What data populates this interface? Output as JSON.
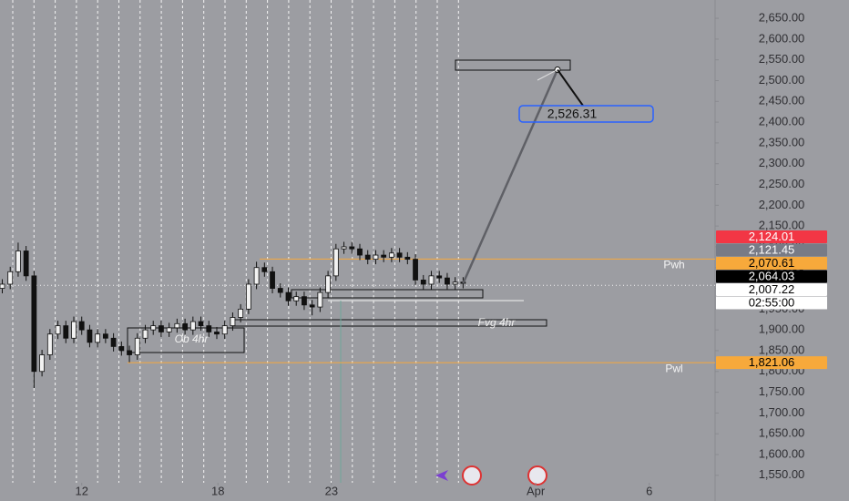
{
  "chart_data": {
    "type": "candlestick",
    "x": [
      8.5,
      8.85,
      9.2,
      9.55,
      9.9,
      10.25,
      10.6,
      10.95,
      11.3,
      11.65,
      12,
      12.35,
      12.7,
      13.05,
      13.4,
      13.75,
      14.1,
      14.45,
      14.8,
      15.15,
      15.5,
      15.85,
      16.2,
      16.55,
      16.9,
      17.25,
      17.6,
      17.95,
      18.3,
      18.65,
      19,
      19.35,
      19.7,
      20.05,
      20.4,
      20.75,
      21.1,
      21.45,
      21.8,
      22.15,
      22.5,
      22.85,
      23.2,
      23.55,
      23.9,
      24.25,
      24.6,
      24.95,
      25.3,
      25.65,
      26,
      26.35,
      26.7,
      27.05,
      27.4,
      27.75,
      28.1,
      28.45,
      28.8
    ],
    "open": [
      2000,
      2010,
      2040,
      2090,
      2030,
      1800,
      1840,
      1890,
      1910,
      1880,
      1920,
      1900,
      1870,
      1890,
      1880,
      1860,
      1850,
      1840,
      1880,
      1900,
      1910,
      1895,
      1905,
      1915,
      1900,
      1920,
      1910,
      1895,
      1890,
      1910,
      1930,
      1950,
      2010,
      2050,
      2040,
      2000,
      1990,
      1970,
      1980,
      1960,
      1955,
      1990,
      2030,
      2095,
      2100,
      2095,
      2080,
      2070,
      2080,
      2075,
      2085,
      2075,
      2070,
      2020,
      2010,
      2030,
      2025,
      2010,
      2015
    ],
    "high": [
      2022,
      2052,
      2110,
      2102,
      2042,
      1852,
      1902,
      1922,
      1922,
      1932,
      1932,
      1912,
      1902,
      1902,
      1892,
      1872,
      1862,
      1892,
      1912,
      1922,
      1922,
      1917,
      1927,
      1927,
      1932,
      1932,
      1922,
      1907,
      1922,
      1942,
      1962,
      2022,
      2064,
      2062,
      2052,
      2012,
      2002,
      1992,
      1992,
      1972,
      2002,
      2042,
      2107,
      2112,
      2112,
      2107,
      2092,
      2092,
      2092,
      2097,
      2097,
      2087,
      2082,
      2032,
      2042,
      2042,
      2037,
      2027,
      2027
    ],
    "low": [
      1988,
      1998,
      2028,
      2018,
      1760,
      1788,
      1828,
      1878,
      1868,
      1868,
      1888,
      1858,
      1858,
      1868,
      1848,
      1838,
      1822,
      1828,
      1868,
      1888,
      1883,
      1883,
      1893,
      1888,
      1888,
      1898,
      1883,
      1878,
      1878,
      1898,
      1918,
      1938,
      1998,
      2028,
      1988,
      1978,
      1958,
      1958,
      1948,
      1935,
      1943,
      1978,
      2018,
      2083,
      2083,
      2068,
      2058,
      2058,
      2063,
      2063,
      2063,
      2058,
      2008,
      1998,
      1998,
      2013,
      1998,
      1998,
      2000
    ],
    "close": [
      2010,
      2040,
      2090,
      2030,
      1800,
      1840,
      1890,
      1910,
      1880,
      1920,
      1900,
      1870,
      1890,
      1880,
      1860,
      1850,
      1840,
      1880,
      1900,
      1910,
      1895,
      1905,
      1915,
      1900,
      1920,
      1910,
      1895,
      1890,
      1910,
      1930,
      1950,
      2010,
      2050,
      2040,
      2000,
      1990,
      1970,
      1980,
      1960,
      1955,
      1990,
      2030,
      2095,
      2100,
      2095,
      2080,
      2070,
      2080,
      2075,
      2085,
      2075,
      2070,
      2020,
      2010,
      2030,
      2025,
      2010,
      2015,
      2012
    ],
    "up_color": "#f2f2f2",
    "down_color": "#111111",
    "xlim": [
      8.4,
      39.9
    ],
    "xticks": [
      12,
      18,
      23,
      {
        "value": 32,
        "label": "Apr"
      },
      {
        "value": 37,
        "label": "6"
      }
    ],
    "ylim": [
      1532,
      2694
    ],
    "yticks": [
      {
        "value": 2650,
        "label": "2,650.00"
      },
      {
        "value": 2600,
        "label": "2,600.00"
      },
      {
        "value": 2550,
        "label": "2,550.00"
      },
      {
        "value": 2500,
        "label": "2,500.00"
      },
      {
        "value": 2450,
        "label": "2,450.00"
      },
      {
        "value": 2400,
        "label": "2,400.00"
      },
      {
        "value": 2350,
        "label": "2,350.00"
      },
      {
        "value": 2300,
        "label": "2,300.00"
      },
      {
        "value": 2250,
        "label": "2,250.00"
      },
      {
        "value": 2200,
        "label": "2,200.00"
      },
      {
        "value": 2150,
        "label": "2,150.00"
      },
      {
        "value": 2100,
        "label": "2,100.00"
      },
      {
        "value": 2050,
        "label": "2,050.00"
      },
      {
        "value": 2000,
        "label": "2,000.00"
      },
      {
        "value": 1950,
        "label": "1,950.00"
      },
      {
        "value": 1900,
        "label": "1,900.00"
      },
      {
        "value": 1850,
        "label": "1,850.00"
      },
      {
        "value": 1800,
        "label": "1,800.00"
      },
      {
        "value": 1750,
        "label": "1,750.00"
      },
      {
        "value": 1700,
        "label": "1,700.00"
      },
      {
        "value": 1650,
        "label": "1,650.00"
      },
      {
        "value": 1600,
        "label": "1,600.00"
      },
      {
        "value": 1550,
        "label": "1,550.00"
      }
    ],
    "price_labels": [
      {
        "value": 2124.01,
        "label": "2,124.01",
        "color": "#f23645",
        "text_color": "#ffffff"
      },
      {
        "value": 2121.45,
        "label": "2,121.45",
        "color": "#787b86",
        "text_color": "#ffffff"
      },
      {
        "value": 2070.61,
        "label": "2,070.61",
        "color": "#f7a93b",
        "text_color": "#000000"
      },
      {
        "value": 2064.03,
        "label": "2,064.03",
        "color": "#000000",
        "text_color": "#ffffff"
      },
      {
        "value": 2007.22,
        "label": "2,007.22",
        "color": "#ffffff",
        "text_color": "#000000",
        "countdown": "02:55:00"
      },
      {
        "value": 1821.06,
        "label": "1,821.06",
        "color": "#f7a93b",
        "text_color": "#000000"
      }
    ],
    "levels": [
      {
        "name": "Pwh",
        "value": 2070.61,
        "color": "#f7a93b"
      },
      {
        "name": "Pwl",
        "value": 1821.06,
        "color": "#f7a93b"
      }
    ],
    "zones": [
      "Fvg 4hr",
      "Ob 4hr"
    ],
    "target": {
      "value": 2526.31,
      "label": "2,526.31"
    }
  }
}
